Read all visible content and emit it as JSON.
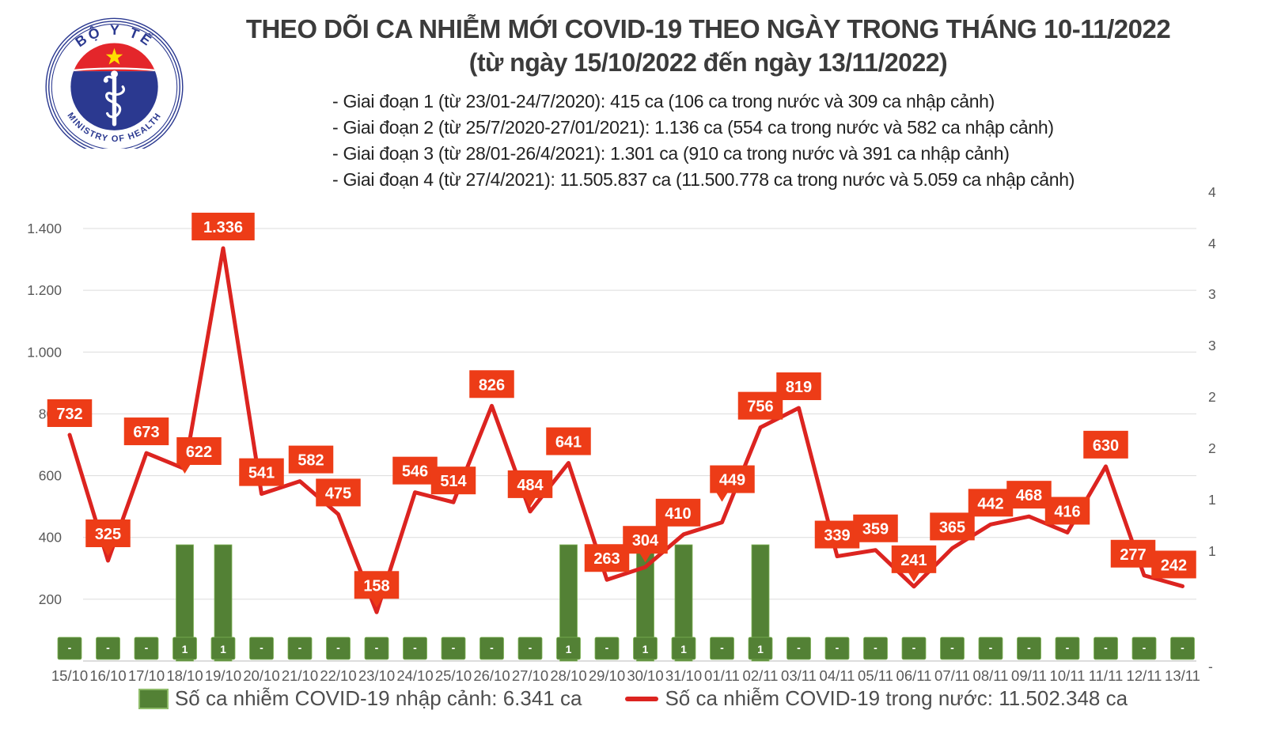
{
  "logo": {
    "top_text": "BỘ Y TẾ",
    "bottom_text": "MINISTRY OF HEALTH"
  },
  "header": {
    "title_line1": "THEO DÕI CA NHIỄM MỚI COVID-19 THEO NGÀY TRONG THÁNG 10-11/2022",
    "title_line2": "(từ ngày 15/10/2022 đến ngày 13/11/2022)",
    "phases": [
      "- Giai đoạn 1 (từ 23/01-24/7/2020): 415 ca (106 ca trong nước và 309 ca nhập cảnh)",
      "- Giai đoạn 2 (từ 25/7/2020-27/01/2021): 1.136 ca (554 ca trong nước và 582 ca nhập cảnh)",
      "- Giai đoạn 3 (từ 28/01-26/4/2021): 1.301 ca (910 ca trong nước và 391 ca nhập cảnh)",
      "- Giai đoạn 4 (từ 27/4/2021): 11.505.837 ca (11.500.778 ca trong nước và 5.059 ca nhập cảnh)"
    ]
  },
  "chart_data": {
    "type": "line+bar",
    "categories": [
      "15/10",
      "16/10",
      "17/10",
      "18/10",
      "19/10",
      "20/10",
      "21/10",
      "22/10",
      "23/10",
      "24/10",
      "25/10",
      "26/10",
      "27/10",
      "28/10",
      "29/10",
      "30/10",
      "31/10",
      "01/11",
      "02/11",
      "03/11",
      "04/11",
      "05/11",
      "06/11",
      "07/11",
      "08/11",
      "09/11",
      "10/11",
      "11/11",
      "12/11",
      "13/11"
    ],
    "series": [
      {
        "name": "Số ca nhiễm COVID-19 trong nước",
        "type": "line",
        "color": "#dc2420",
        "values": [
          732,
          325,
          673,
          622,
          1336,
          541,
          582,
          475,
          158,
          546,
          514,
          826,
          484,
          641,
          263,
          304,
          410,
          449,
          756,
          819,
          339,
          359,
          241,
          365,
          442,
          468,
          416,
          630,
          277,
          242
        ]
      },
      {
        "name": "Số ca nhiễm COVID-19 nhập cảnh",
        "type": "bar",
        "color": "#538135",
        "values": [
          0,
          0,
          0,
          1,
          1,
          0,
          0,
          0,
          0,
          0,
          0,
          0,
          0,
          1,
          0,
          1,
          1,
          0,
          1,
          0,
          0,
          0,
          0,
          0,
          0,
          0,
          0,
          0,
          0,
          0
        ],
        "value_labels": [
          "-",
          "-",
          "-",
          "1",
          "1",
          "-",
          "-",
          "-",
          "-",
          "-",
          "-",
          "-",
          "-",
          "1",
          "-",
          "1",
          "1",
          "-",
          "1",
          "-",
          "-",
          "-",
          "-",
          "-",
          "-",
          "-",
          "-",
          "-",
          "-",
          "-"
        ]
      }
    ],
    "left_axis": {
      "ticks": [
        "1.400",
        "1.200",
        "1.000",
        "800",
        "600",
        "400",
        "200"
      ],
      "range": [
        0,
        1400
      ],
      "grid": true
    },
    "right_axis": {
      "ticks": [
        "4",
        "4",
        "3",
        "3",
        "2",
        "2",
        "1",
        "1",
        "-"
      ]
    },
    "legend": [
      {
        "label": "Số ca nhiễm COVID-19 nhập cảnh: 6.341 ca",
        "swatch": "bar"
      },
      {
        "label": "Số ca nhiễm COVID-19 trong nước: 11.502.348 ca",
        "swatch": "line"
      }
    ],
    "legend_position": "bottom"
  }
}
